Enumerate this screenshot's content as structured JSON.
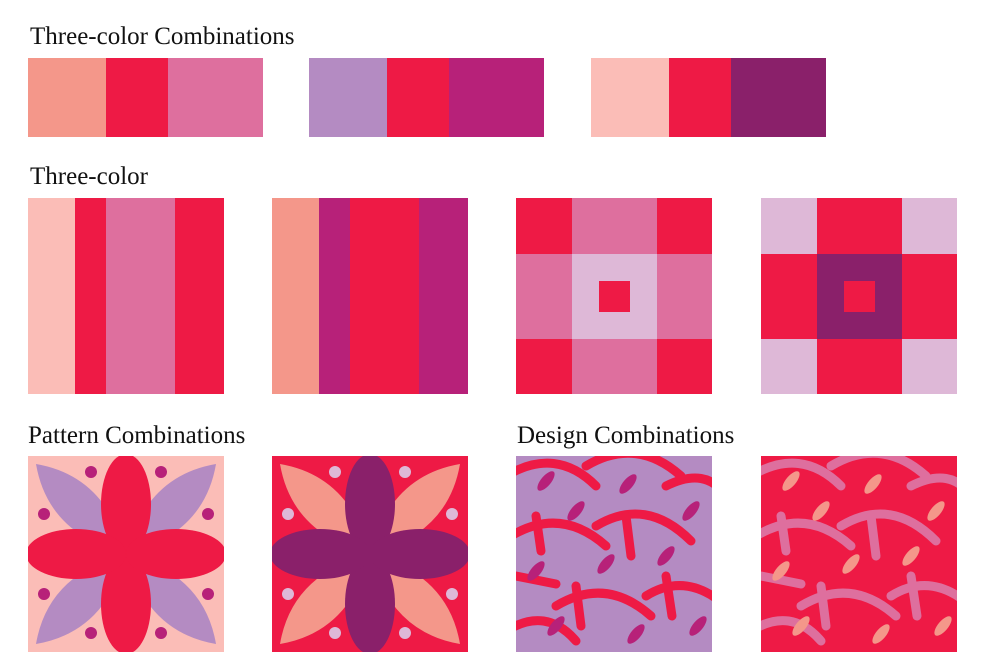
{
  "headings": {
    "combos": "Three-color Combinations",
    "three_color": "Three-color",
    "pattern": "Pattern Combinations",
    "design": "Design Combinations"
  },
  "colors": {
    "salmon": "#F4978A",
    "red": "#EE1A45",
    "pink": "#DE6F9E",
    "lavender": "#B48BC2",
    "magenta": "#B72179",
    "blush": "#FBBDB7",
    "plum": "#8A206A",
    "lilac": "#DEB8D7"
  },
  "palettes": [
    {
      "name": "palette-1",
      "colors": [
        "#F4978A",
        "#EE1A45",
        "#DE6F9E"
      ]
    },
    {
      "name": "palette-2",
      "colors": [
        "#B48BC2",
        "#EE1A45",
        "#B72179"
      ]
    },
    {
      "name": "palette-3",
      "colors": [
        "#FBBDB7",
        "#EE1A45",
        "#8A206A"
      ]
    }
  ],
  "stripe_tiles": [
    {
      "name": "stripe-tile-1",
      "colors": [
        "#FBBDB7",
        "#EE1A45",
        "#DE6F9E",
        "#EE1A45"
      ]
    },
    {
      "name": "stripe-tile-2",
      "colors": [
        "#F4978A",
        "#B72179",
        "#EE1A45",
        "#B72179"
      ]
    }
  ],
  "block_tiles": [
    {
      "name": "block-tile-1",
      "corner": "#EE1A45",
      "edge": "#DE6F9E",
      "center": "#DEB8D7",
      "core": "#EE1A45"
    },
    {
      "name": "block-tile-2",
      "corner": "#DEB8D7",
      "edge": "#EE1A45",
      "center": "#8A206A",
      "core": "#EE1A45"
    }
  ],
  "flower_tiles": [
    {
      "name": "flower-tile-1",
      "background": "#FBBDB7",
      "diagonal_petals": "#B48BC2",
      "main_petals": "#EE1A45",
      "dots": "#B72179"
    },
    {
      "name": "flower-tile-2",
      "background": "#EE1A45",
      "diagonal_petals": "#F4978A",
      "main_petals": "#8A206A",
      "dots": "#DEB8D7"
    }
  ],
  "design_tiles": [
    {
      "name": "design-tile-1",
      "background": "#B48BC2",
      "arcs": "#EE1A45",
      "leaves": "#B72179"
    },
    {
      "name": "design-tile-2",
      "background": "#EE1A45",
      "arcs": "#DE6F9E",
      "leaves": "#F4978A"
    }
  ]
}
